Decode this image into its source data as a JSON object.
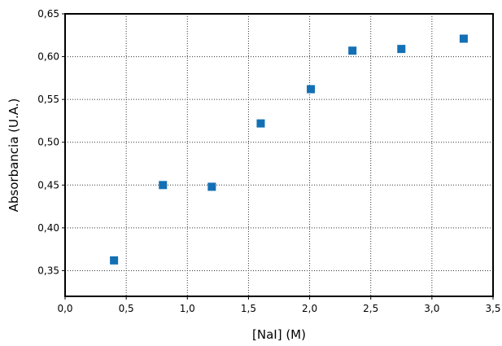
{
  "chart_data": {
    "type": "scatter",
    "title": "",
    "xlabel": "[NaI] (M)",
    "ylabel": "Absorbancia (U.A.)",
    "xlim": [
      0.0,
      3.5
    ],
    "ylim": [
      0.32,
      0.65
    ],
    "x_ticks": [
      0.0,
      0.5,
      1.0,
      1.5,
      2.0,
      2.5,
      3.0,
      3.5
    ],
    "x_tick_labels": [
      "0,0",
      "0,5",
      "1,0",
      "1,5",
      "2,0",
      "2,5",
      "3,0",
      "3,5"
    ],
    "y_ticks": [
      0.35,
      0.4,
      0.45,
      0.5,
      0.55,
      0.6,
      0.65
    ],
    "y_tick_labels": [
      "0,35",
      "0,40",
      "0,45",
      "0,50",
      "0,55",
      "0,60",
      "0,65"
    ],
    "grid": true,
    "marker": "square",
    "marker_color": "#1470b4",
    "series": [
      {
        "x": [
          0.4,
          0.8,
          1.2,
          1.6,
          2.01,
          2.35,
          2.75,
          3.26
        ],
        "y": [
          0.362,
          0.45,
          0.448,
          0.522,
          0.562,
          0.607,
          0.609,
          0.621
        ]
      }
    ]
  }
}
